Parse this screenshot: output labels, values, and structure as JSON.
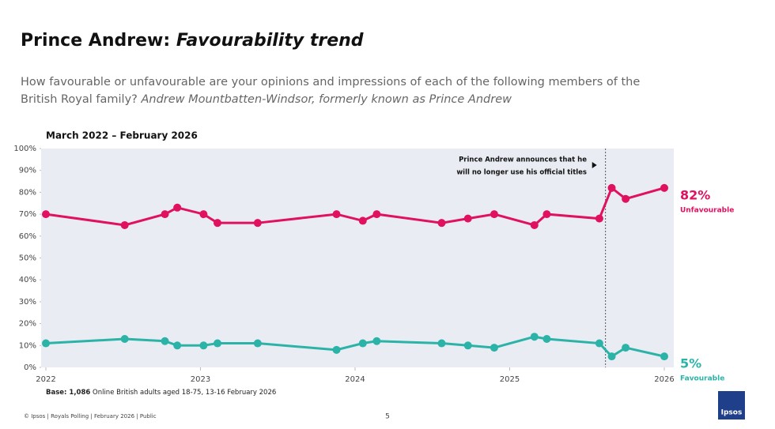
{
  "chart_data": {
    "type": "line",
    "title": "Prince Andrew:",
    "title_emphasis": "Favourability trend",
    "subtitle": "How favourable or unfavourable are your opinions and impressions of each of the following members of the British Royal family?",
    "subtitle_emphasis": "Andrew Mountbatten-Windsor, formerly known as Prince Andrew",
    "period": "March 2022 – February 2026",
    "x": [
      2022.0,
      2022.51,
      2022.77,
      2022.85,
      2023.02,
      2023.11,
      2023.37,
      2023.88,
      2024.05,
      2024.14,
      2024.56,
      2024.73,
      2024.9,
      2025.16,
      2025.24,
      2025.58,
      2025.66,
      2025.75,
      2026.0
    ],
    "series": [
      {
        "name": "Unfavourable",
        "color": "#e0115f",
        "values": [
          70,
          65,
          70,
          73,
          70,
          66,
          66,
          70,
          67,
          70,
          66,
          68,
          70,
          65,
          70,
          68,
          82,
          77,
          82
        ],
        "value_labels": [
          null,
          null,
          null,
          null,
          null,
          null,
          null,
          null,
          null,
          null,
          null,
          null,
          null,
          null,
          null,
          null,
          null,
          null,
          "82%"
        ]
      },
      {
        "name": "Favourable",
        "color": "#2bb3a8",
        "values": [
          11,
          13,
          12,
          10,
          10,
          11,
          11,
          8,
          11,
          12,
          11,
          10,
          9,
          14,
          13,
          11,
          5,
          9,
          5
        ],
        "value_labels": [
          null,
          null,
          null,
          null,
          null,
          null,
          null,
          null,
          null,
          null,
          null,
          null,
          null,
          null,
          null,
          null,
          null,
          null,
          "5%"
        ]
      }
    ],
    "xlim": [
      2022,
      2026
    ],
    "xticks": [
      2022,
      2023,
      2024,
      2025,
      2026
    ],
    "ylim": [
      0,
      100
    ],
    "yticks": [
      {
        "value": 0,
        "label": "0%"
      },
      {
        "value": 10,
        "label": "10%"
      },
      {
        "value": 20,
        "label": "20%"
      },
      {
        "value": 30,
        "label": "30%"
      },
      {
        "value": 40,
        "label": "40%"
      },
      {
        "value": 50,
        "label": "50%"
      },
      {
        "value": 60,
        "label": "60%"
      },
      {
        "value": 70,
        "label": "70%"
      },
      {
        "value": 80,
        "label": "80%"
      },
      {
        "value": 90,
        "label": "90%"
      },
      {
        "value": 100,
        "label": "100%"
      }
    ],
    "annotation": {
      "x": 2025.62,
      "lines": [
        "Prince Andrew announces that he",
        "will no longer use his official titles"
      ]
    },
    "base_label": "Base",
    "base_count": "1,086",
    "base_text": "Online British adults aged 18-75, 13-16 February 2026",
    "footer": "© Ipsos | Royals Polling | February 2026 | Public",
    "page_number": "5",
    "logo": "Ipsos"
  }
}
